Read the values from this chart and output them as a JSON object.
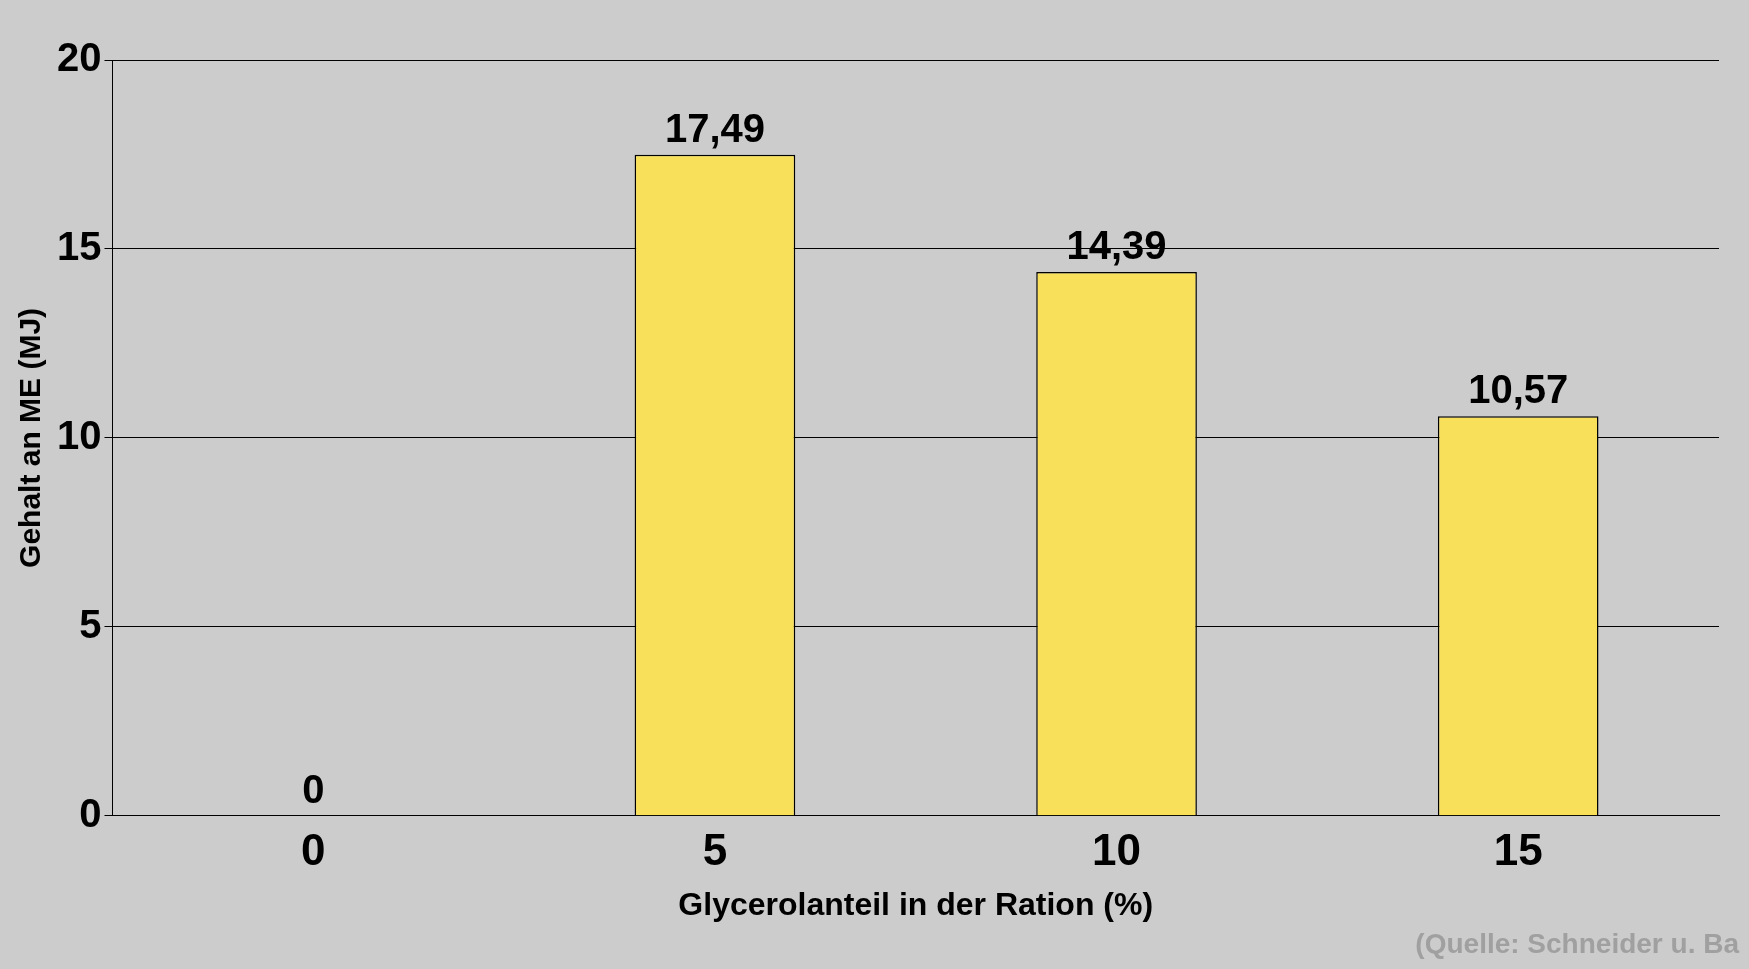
{
  "chart_data": {
    "type": "bar",
    "xlabel": "Glycerolanteil in der Ration (%)",
    "ylabel": "Gehalt an ME (MJ)",
    "categories": [
      "0",
      "5",
      "10",
      "15"
    ],
    "values": [
      0,
      17.49,
      14.39,
      10.57
    ],
    "value_labels": [
      "0",
      "17,49",
      "14,39",
      "10,57"
    ],
    "color": "#f9e05a",
    "ylim": [
      0,
      20
    ],
    "yticks": [
      0,
      5,
      10,
      15,
      20
    ],
    "grid": "y",
    "annotations": [
      "(Quelle: Schneider u. Ba"
    ]
  }
}
